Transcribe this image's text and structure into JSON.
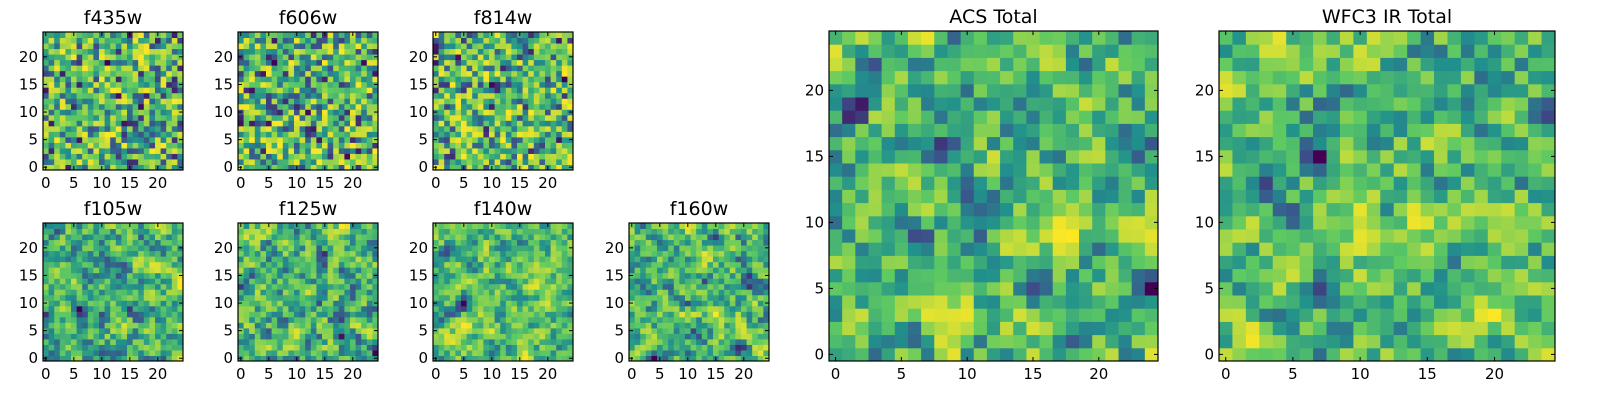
{
  "chart_data": {
    "type": "heatmap",
    "colormap": [
      "#440154",
      "#3b528b",
      "#21918c",
      "#5ec962",
      "#fde725"
    ],
    "panels": [
      {
        "id": "f435w",
        "title": "f435w",
        "grid": 25,
        "xticks": [
          0,
          5,
          10,
          15,
          20
        ],
        "yticks": [
          0,
          5,
          10,
          15,
          20
        ],
        "xlim": [
          0,
          24
        ],
        "ylim": [
          0,
          24
        ]
      },
      {
        "id": "f606w",
        "title": "f606w",
        "grid": 25,
        "xticks": [
          0,
          5,
          10,
          15,
          20
        ],
        "yticks": [
          0,
          5,
          10,
          15,
          20
        ],
        "xlim": [
          0,
          24
        ],
        "ylim": [
          0,
          24
        ]
      },
      {
        "id": "f814w",
        "title": "f814w",
        "grid": 25,
        "xticks": [
          0,
          5,
          10,
          15,
          20
        ],
        "yticks": [
          0,
          5,
          10,
          15,
          20
        ],
        "xlim": [
          0,
          24
        ],
        "ylim": [
          0,
          24
        ]
      },
      {
        "id": "f105w",
        "title": "f105w",
        "grid": 25,
        "xticks": [
          0,
          5,
          10,
          15,
          20
        ],
        "yticks": [
          0,
          5,
          10,
          15,
          20
        ],
        "xlim": [
          0,
          24
        ],
        "ylim": [
          0,
          24
        ]
      },
      {
        "id": "f125w",
        "title": "f125w",
        "grid": 25,
        "xticks": [
          0,
          5,
          10,
          15,
          20
        ],
        "yticks": [
          0,
          5,
          10,
          15,
          20
        ],
        "xlim": [
          0,
          24
        ],
        "ylim": [
          0,
          24
        ]
      },
      {
        "id": "f140w",
        "title": "f140w",
        "grid": 25,
        "xticks": [
          0,
          5,
          10,
          15,
          20
        ],
        "yticks": [
          0,
          5,
          10,
          15,
          20
        ],
        "xlim": [
          0,
          24
        ],
        "ylim": [
          0,
          24
        ]
      },
      {
        "id": "f160w",
        "title": "f160w",
        "grid": 25,
        "xticks": [
          0,
          5,
          10,
          15,
          20
        ],
        "yticks": [
          0,
          5,
          10,
          15,
          20
        ],
        "xlim": [
          0,
          24
        ],
        "ylim": [
          0,
          24
        ]
      },
      {
        "id": "acs-total",
        "title": "ACS Total",
        "grid": 25,
        "xticks": [
          0,
          5,
          10,
          15,
          20
        ],
        "yticks": [
          0,
          5,
          10,
          15,
          20
        ],
        "xlim": [
          0,
          24
        ],
        "ylim": [
          0,
          24
        ]
      },
      {
        "id": "wfc3-ir-total",
        "title": "WFC3 IR Total",
        "grid": 25,
        "xticks": [
          0,
          5,
          10,
          15,
          20
        ],
        "yticks": [
          0,
          5,
          10,
          15,
          20
        ],
        "xlim": [
          0,
          24
        ],
        "ylim": [
          0,
          24
        ]
      }
    ]
  }
}
